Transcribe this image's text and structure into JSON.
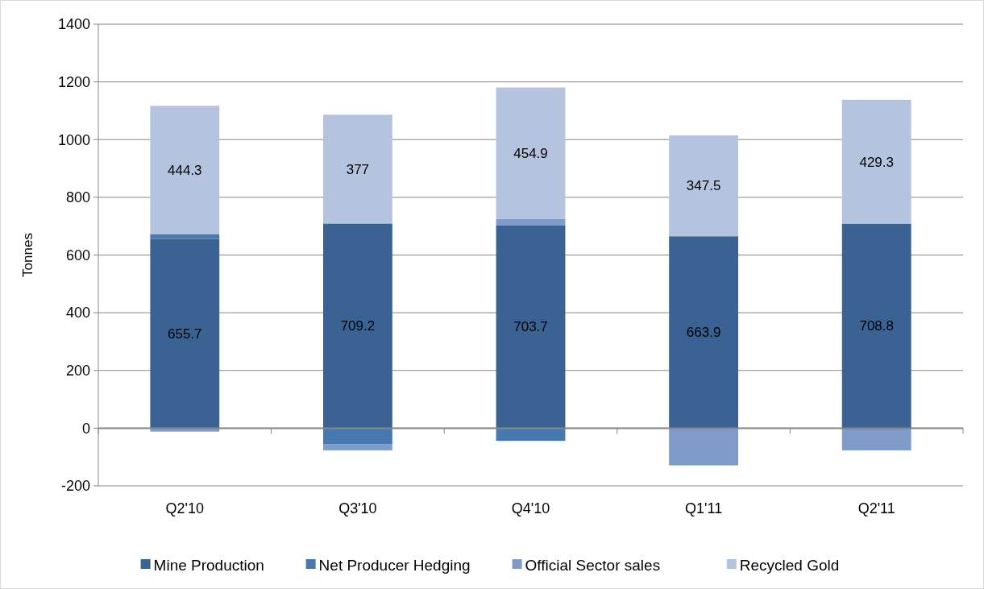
{
  "chart_data": {
    "type": "bar",
    "stacked": true,
    "ylabel": "Tonnes",
    "categories": [
      "Q2'10",
      "Q3'10",
      "Q4'10",
      "Q1'11",
      "Q2'11"
    ],
    "series": [
      {
        "name": "Mine Production",
        "color": "#3a6394",
        "values": [
          655.7,
          709.2,
          703.7,
          663.9,
          708.8
        ],
        "value_labels": [
          "655.7",
          "709.2",
          "703.7",
          "663.9",
          "708.8"
        ]
      },
      {
        "name": "Net Producer Hedging",
        "color": "#4878b0",
        "values": [
          17,
          -55,
          -44,
          3,
          -4
        ]
      },
      {
        "name": "Official Sector sales",
        "color": "#7f9cc8",
        "values": [
          -12,
          -22,
          22,
          -129,
          -73
        ]
      },
      {
        "name": "Recycled Gold",
        "color": "#b5c4de",
        "values": [
          444.3,
          377,
          454.9,
          347.5,
          429.3
        ],
        "value_labels": [
          "444.3",
          "377",
          "454.9",
          "347.5",
          "429.3"
        ]
      }
    ],
    "ylim": [
      -200,
      1400
    ],
    "yticks": [
      -200,
      0,
      200,
      400,
      600,
      800,
      1000,
      1200,
      1400
    ],
    "grid": "y",
    "legend": "bottom"
  }
}
